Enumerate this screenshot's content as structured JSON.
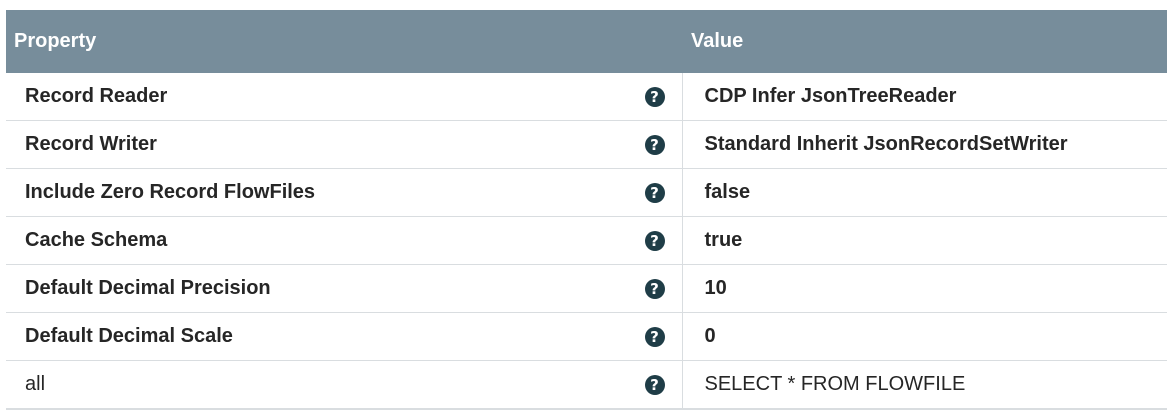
{
  "header": {
    "property_label": "Property",
    "value_label": "Value"
  },
  "rows": [
    {
      "name": "Record Reader",
      "value": "CDP Infer JsonTreeReader",
      "help_icon": "help-circle-icon",
      "help_glyph": "?"
    },
    {
      "name": "Record Writer",
      "value": "Standard Inherit JsonRecordSetWriter",
      "help_icon": "help-circle-icon",
      "help_glyph": "?"
    },
    {
      "name": "Include Zero Record FlowFiles",
      "value": "false",
      "help_icon": "help-circle-icon",
      "help_glyph": "?"
    },
    {
      "name": "Cache Schema",
      "value": "true",
      "help_icon": "help-circle-icon",
      "help_glyph": "?"
    },
    {
      "name": "Default Decimal Precision",
      "value": "10",
      "help_icon": "help-circle-icon",
      "help_glyph": "?"
    },
    {
      "name": "Default Decimal Scale",
      "value": "0",
      "help_icon": "help-circle-icon",
      "help_glyph": "?"
    },
    {
      "name": "all",
      "value": "SELECT * FROM FLOWFILE",
      "help_icon": "help-circle-icon",
      "help_glyph": "?"
    }
  ],
  "colors": {
    "header_bg": "#778d9b",
    "header_text": "#ffffff",
    "help_icon_bg": "#1f3d47",
    "row_border": "#d9dde0"
  }
}
